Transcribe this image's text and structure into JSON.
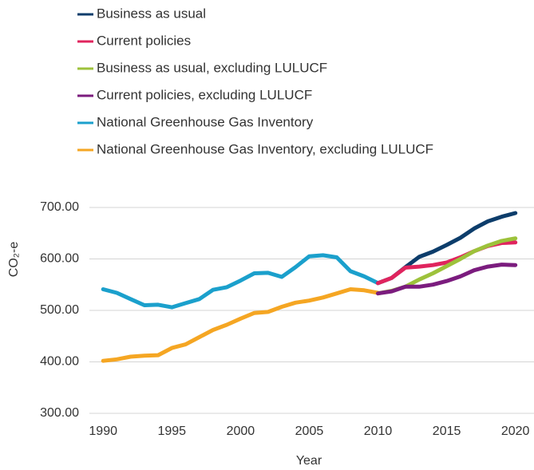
{
  "chart_data": {
    "type": "line",
    "x_label": "Year",
    "y_label": "CO₂-e",
    "xlim": [
      1989,
      2020.6
    ],
    "xticks": [
      1990,
      1995,
      2000,
      2005,
      2010,
      2015,
      2020
    ],
    "ylim": [
      300,
      710
    ],
    "yticks": [
      {
        "value": 300,
        "label": "300.00"
      },
      {
        "value": 400,
        "label": "400.00"
      },
      {
        "value": 500,
        "label": "500.00"
      },
      {
        "value": 600,
        "label": "600.00"
      },
      {
        "value": 700,
        "label": "700.00"
      }
    ],
    "grid": true,
    "legend": "top-left",
    "series": [
      {
        "name": "Business as usual",
        "color": "#0d3d6b",
        "x": [
          2010,
          2011,
          2012,
          2013,
          2014,
          2015,
          2016,
          2017,
          2018,
          2019,
          2020
        ],
        "values": [
          553,
          563,
          584,
          604,
          614,
          627,
          641,
          659,
          673,
          682,
          689
        ]
      },
      {
        "name": "Current policies",
        "color": "#e0245e",
        "x": [
          2010,
          2011,
          2012,
          2013,
          2014,
          2015,
          2016,
          2017,
          2018,
          2019,
          2020
        ],
        "values": [
          553,
          563,
          583,
          585,
          588,
          593,
          603,
          615,
          625,
          631,
          632
        ]
      },
      {
        "name": "Business as usual, excluding LULUCF",
        "color": "#9dc23b",
        "x": [
          2010,
          2011,
          2012,
          2013,
          2014,
          2015,
          2016,
          2017,
          2018,
          2019,
          2020
        ],
        "values": [
          533,
          538,
          546,
          560,
          572,
          586,
          600,
          615,
          626,
          635,
          640
        ]
      },
      {
        "name": "Current policies, excluding LULUCF",
        "color": "#7b1c7e",
        "x": [
          2010,
          2011,
          2012,
          2013,
          2014,
          2015,
          2016,
          2017,
          2018,
          2019,
          2020
        ],
        "values": [
          533,
          537,
          546,
          546,
          550,
          557,
          566,
          578,
          585,
          589,
          588
        ]
      },
      {
        "name": "National Greenhouse Gas Inventory",
        "color": "#1ba0cc",
        "x": [
          1990,
          1991,
          1992,
          1993,
          1994,
          1995,
          1996,
          1997,
          1998,
          1999,
          2000,
          2001,
          2002,
          2003,
          2004,
          2005,
          2006,
          2007,
          2008,
          2009,
          2010
        ],
        "values": [
          541,
          534,
          522,
          510,
          511,
          506,
          514,
          522,
          540,
          545,
          558,
          572,
          573,
          565,
          584,
          605,
          607,
          603,
          576,
          566,
          553
        ]
      },
      {
        "name": "National Greenhouse Gas Inventory, excluding LULUCF",
        "color": "#f5a623",
        "x": [
          1990,
          1991,
          1992,
          1993,
          1994,
          1995,
          1996,
          1997,
          1998,
          1999,
          2000,
          2001,
          2002,
          2003,
          2004,
          2005,
          2006,
          2007,
          2008,
          2009,
          2010
        ],
        "values": [
          402,
          405,
          410,
          412,
          413,
          427,
          434,
          448,
          462,
          472,
          484,
          495,
          497,
          507,
          515,
          519,
          525,
          533,
          541,
          539,
          534
        ]
      }
    ]
  }
}
